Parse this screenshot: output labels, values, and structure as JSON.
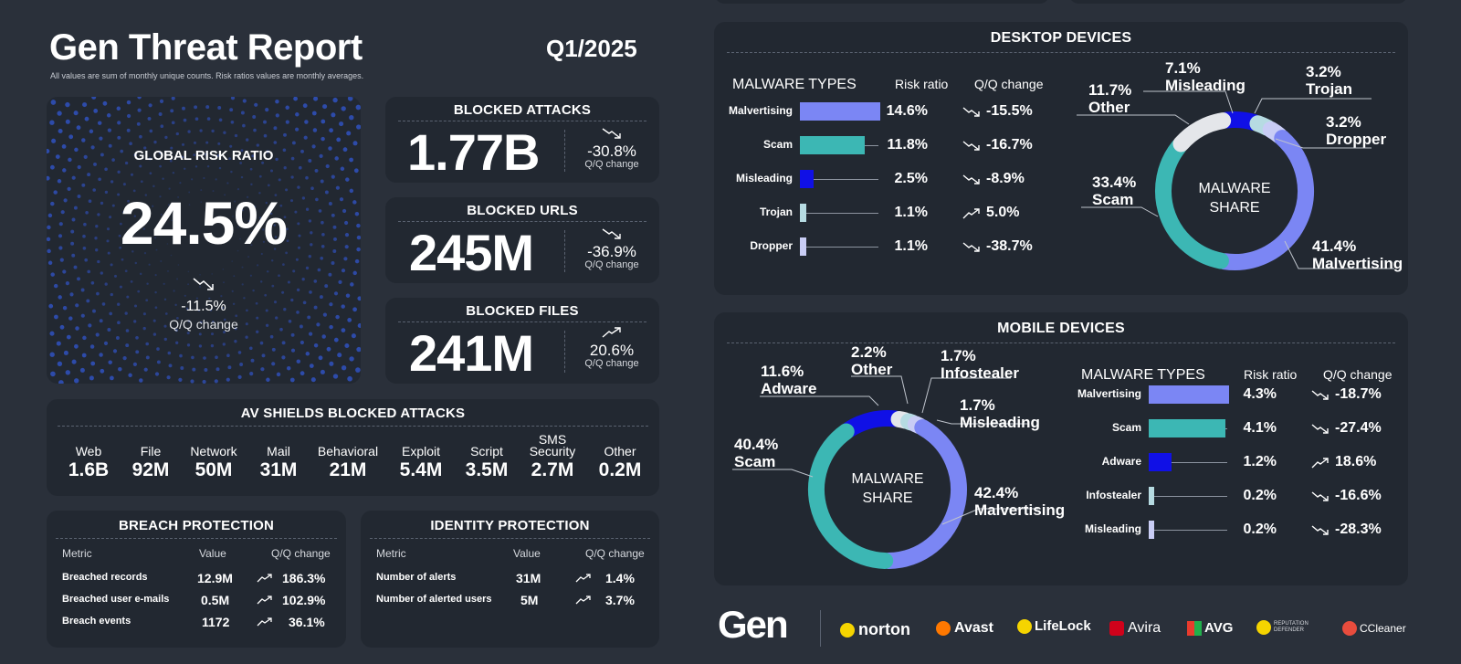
{
  "header": {
    "title": "Gen Threat Report",
    "quarter": "Q1/2025",
    "subtitle": "All values are sum of monthly unique counts. Risk ratios values are monthly averages."
  },
  "global_risk": {
    "label": "GLOBAL RISK RATIO",
    "value": "24.5%",
    "change": "-11.5%",
    "change_label": "Q/Q change"
  },
  "blocked": [
    {
      "title": "BLOCKED ATTACKS",
      "value": "1.77B",
      "change": "-30.8%",
      "change_label": "Q/Q change",
      "trend": "down"
    },
    {
      "title": "BLOCKED URLS",
      "value": "245M",
      "change": "-36.9%",
      "change_label": "Q/Q change",
      "trend": "down"
    },
    {
      "title": "BLOCKED FILES",
      "value": "241M",
      "change": "20.6%",
      "change_label": "Q/Q change",
      "trend": "up"
    }
  ],
  "av_shields": {
    "title": "AV SHIELDS BLOCKED ATTACKS",
    "items": [
      {
        "label": "Web",
        "value": "1.6B"
      },
      {
        "label": "File",
        "value": "92M"
      },
      {
        "label": "Network",
        "value": "50M"
      },
      {
        "label": "Mail",
        "value": "31M"
      },
      {
        "label": "Behavioral",
        "value": "21M"
      },
      {
        "label": "Exploit",
        "value": "5.4M"
      },
      {
        "label": "Script",
        "value": "3.5M"
      },
      {
        "label": "SMS Security",
        "value": "2.7M"
      },
      {
        "label": "Other",
        "value": "0.2M"
      }
    ]
  },
  "breach": {
    "title": "BREACH PROTECTION",
    "headers": [
      "Metric",
      "Value",
      "Q/Q change"
    ],
    "rows": [
      {
        "metric": "Breached records",
        "value": "12.9M",
        "change": "186.3%"
      },
      {
        "metric": "Breached user e-mails",
        "value": "0.5M",
        "change": "102.9%"
      },
      {
        "metric": "Breach events",
        "value": "1172",
        "change": "36.1%"
      }
    ]
  },
  "identity": {
    "title": "IDENTITY PROTECTION",
    "headers": [
      "Metric",
      "Value",
      "Q/Q change"
    ],
    "rows": [
      {
        "metric": "Number of alerts",
        "value": "31M",
        "change": "1.4%"
      },
      {
        "metric": "Number of alerted users",
        "value": "5M",
        "change": "3.7%"
      }
    ]
  },
  "desktop": {
    "title": "DESKTOP DEVICES",
    "col_types": "MALWARE TYPES",
    "col_risk": "Risk ratio",
    "col_qq": "Q/Q change",
    "center": [
      "MALWARE",
      "SHARE"
    ],
    "rows": [
      {
        "label": "Malvertising",
        "risk": "14.6%",
        "risk_value": 14.6,
        "change": "-15.5%",
        "trend": "down",
        "color": "#7b86f4"
      },
      {
        "label": "Scam",
        "risk": "11.8%",
        "risk_value": 11.8,
        "change": "-16.7%",
        "trend": "down",
        "color": "#3cb7b4"
      },
      {
        "label": "Misleading",
        "risk": "2.5%",
        "risk_value": 2.5,
        "change": "-8.9%",
        "trend": "down",
        "color": "#1010e6"
      },
      {
        "label": "Trojan",
        "risk": "1.1%",
        "risk_value": 1.1,
        "change": "5.0%",
        "trend": "up",
        "color": "#b6dbe2"
      },
      {
        "label": "Dropper",
        "risk": "1.1%",
        "risk_value": 1.1,
        "change": "-38.7%",
        "trend": "down",
        "color": "#c9cdf5"
      }
    ],
    "share": [
      {
        "pct": "41.4%",
        "name": "Malvertising",
        "value": 41.4,
        "color": "#7b86f4"
      },
      {
        "pct": "33.4%",
        "name": "Scam",
        "value": 33.4,
        "color": "#3cb7b4"
      },
      {
        "pct": "11.7%",
        "name": "Other",
        "value": 11.7,
        "color": "#e4e6ea"
      },
      {
        "pct": "7.1%",
        "name": "Misleading",
        "value": 7.1,
        "color": "#1010e6"
      },
      {
        "pct": "3.2%",
        "name": "Trojan",
        "value": 3.2,
        "color": "#b6dbe2"
      },
      {
        "pct": "3.2%",
        "name": "Dropper",
        "value": 3.2,
        "color": "#c9cdf5"
      }
    ]
  },
  "mobile": {
    "title": "MOBILE DEVICES",
    "col_types": "MALWARE TYPES",
    "col_risk": "Risk ratio",
    "col_qq": "Q/Q change",
    "center": [
      "MALWARE",
      "SHARE"
    ],
    "rows": [
      {
        "label": "Malvertising",
        "risk": "4.3%",
        "risk_value": 4.3,
        "change": "-18.7%",
        "trend": "down",
        "color": "#7b86f4"
      },
      {
        "label": "Scam",
        "risk": "4.1%",
        "risk_value": 4.1,
        "change": "-27.4%",
        "trend": "down",
        "color": "#3cb7b4"
      },
      {
        "label": "Adware",
        "risk": "1.2%",
        "risk_value": 1.2,
        "change": "18.6%",
        "trend": "up",
        "color": "#1010e6"
      },
      {
        "label": "Infostealer",
        "risk": "0.2%",
        "risk_value": 0.2,
        "change": "-16.6%",
        "trend": "down",
        "color": "#b6dbe2"
      },
      {
        "label": "Misleading",
        "risk": "0.2%",
        "risk_value": 0.2,
        "change": "-28.3%",
        "trend": "down",
        "color": "#c9cdf5"
      }
    ],
    "share": [
      {
        "pct": "42.4%",
        "name": "Malvertising",
        "value": 42.4,
        "color": "#7b86f4"
      },
      {
        "pct": "40.4%",
        "name": "Scam",
        "value": 40.4,
        "color": "#3cb7b4"
      },
      {
        "pct": "11.6%",
        "name": "Adware",
        "value": 11.6,
        "color": "#1010e6"
      },
      {
        "pct": "2.2%",
        "name": "Other",
        "value": 2.2,
        "color": "#e4e6ea"
      },
      {
        "pct": "1.7%",
        "name": "Infostealer",
        "value": 1.7,
        "color": "#b6dbe2"
      },
      {
        "pct": "1.7%",
        "name": "Misleading",
        "value": 1.7,
        "color": "#c9cdf5"
      }
    ]
  },
  "brands": [
    "Gen",
    "norton",
    "Avast",
    "LifeLock",
    "Avira",
    "AVG",
    "REPUTATION DEFENDER",
    "CCleaner"
  ]
}
